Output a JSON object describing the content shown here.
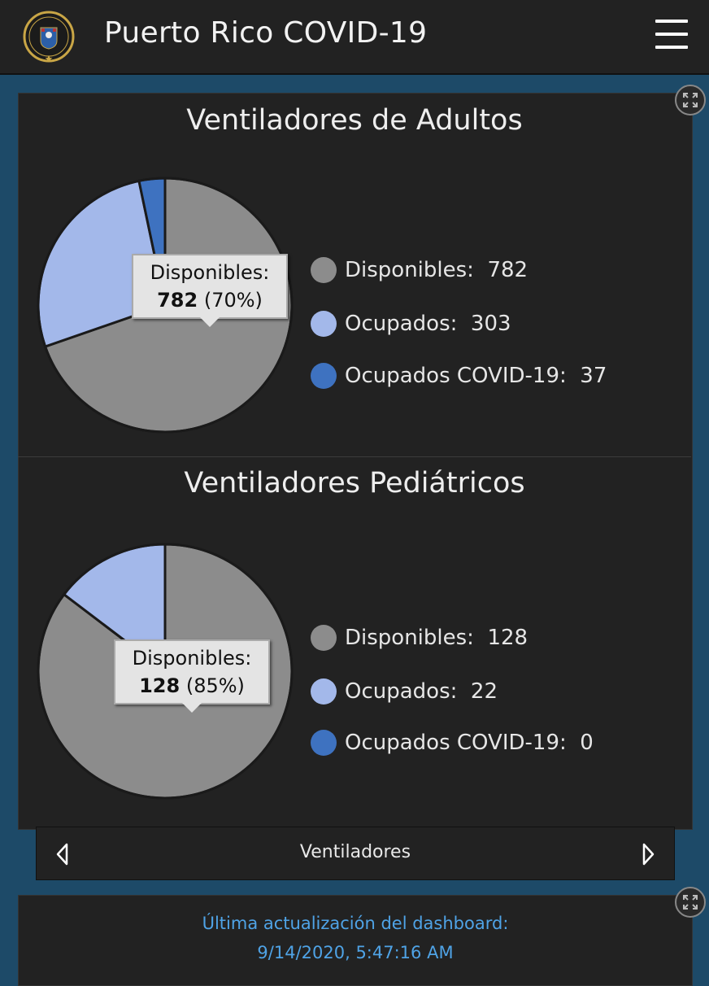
{
  "header": {
    "title": "Puerto Rico COVID-19",
    "seal_text": "GOBIERNO DE PUERTO RICO",
    "menu_icon": "hamburger-menu-icon"
  },
  "charts": [
    {
      "title": "Ventiladores de Adultos",
      "tooltip": {
        "label": "Disponibles:",
        "value": "782",
        "percent": "(70%)"
      },
      "legend": [
        {
          "label": "Disponibles:  782",
          "color": "#8c8c8c"
        },
        {
          "label": "Ocupados:  303",
          "color": "#a3b8ea"
        },
        {
          "label": "Ocupados COVID-19:  37",
          "color": "#3e72c0"
        }
      ]
    },
    {
      "title": "Ventiladores Pediátricos",
      "tooltip": {
        "label": "Disponibles:",
        "value": "128",
        "percent": "(85%)"
      },
      "legend": [
        {
          "label": "Disponibles:  128",
          "color": "#8c8c8c"
        },
        {
          "label": "Ocupados:  22",
          "color": "#a3b8ea"
        },
        {
          "label": "Ocupados COVID-19:  0",
          "color": "#3e72c0"
        }
      ]
    }
  ],
  "chart_data": [
    {
      "type": "pie",
      "title": "Ventiladores de Adultos",
      "categories": [
        "Disponibles",
        "Ocupados",
        "Ocupados COVID-19"
      ],
      "values": [
        782,
        303,
        37
      ],
      "colors": [
        "#8c8c8c",
        "#a3b8ea",
        "#3e72c0"
      ]
    },
    {
      "type": "pie",
      "title": "Ventiladores Pediátricos",
      "categories": [
        "Disponibles",
        "Ocupados",
        "Ocupados COVID-19"
      ],
      "values": [
        128,
        22,
        0
      ],
      "colors": [
        "#8c8c8c",
        "#a3b8ea",
        "#3e72c0"
      ]
    }
  ],
  "navigation": {
    "label": "Ventiladores"
  },
  "update": {
    "line1": "Última actualización del dashboard:",
    "line2": "9/14/2020, 5:47:16 AM"
  }
}
